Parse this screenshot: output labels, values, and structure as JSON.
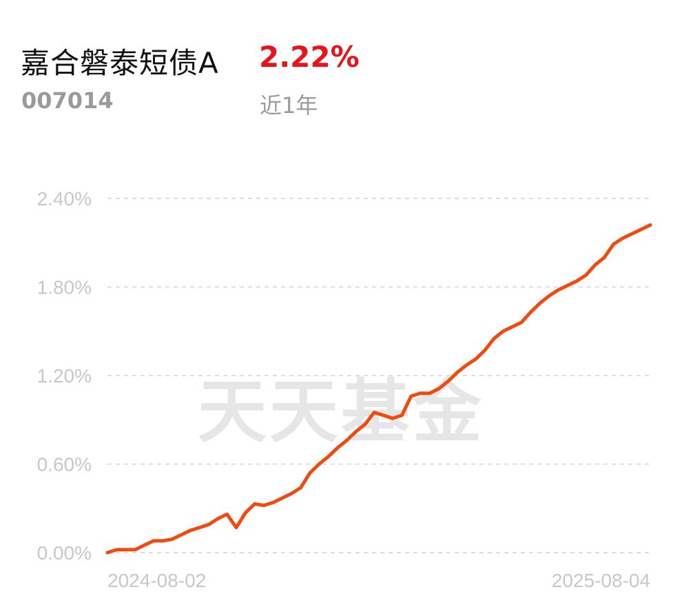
{
  "header": {
    "fund_name": "嘉合磐泰短债A",
    "fund_code": "007014",
    "return_value": "2.22%",
    "period_label": "近1年"
  },
  "colors": {
    "line": "#f04a10",
    "return_value": "#e8141b",
    "grid": "#dddddd",
    "labels": "#c7c7c7",
    "watermark": "#e6e6e6"
  },
  "watermark": "天天基金",
  "chart_data": {
    "type": "line",
    "title": "",
    "xlabel": "",
    "ylabel": "",
    "ylim": [
      0,
      2.4
    ],
    "y_unit": "%",
    "y_ticks": [
      "0.00%",
      "0.60%",
      "1.20%",
      "1.80%",
      "2.40%"
    ],
    "x_tick_labels": [
      "2024-08-02",
      "2025-08-04"
    ],
    "grid": true,
    "series": [
      {
        "color": "#f04a10",
        "x_start": "2024-08-02",
        "x_end": "2025-08-04",
        "values": [
          0.0,
          0.02,
          0.02,
          0.02,
          0.05,
          0.08,
          0.08,
          0.09,
          0.12,
          0.15,
          0.17,
          0.19,
          0.23,
          0.26,
          0.17,
          0.27,
          0.33,
          0.32,
          0.34,
          0.37,
          0.4,
          0.44,
          0.54,
          0.6,
          0.65,
          0.71,
          0.76,
          0.82,
          0.87,
          0.95,
          0.93,
          0.91,
          0.93,
          1.06,
          1.08,
          1.08,
          1.11,
          1.16,
          1.22,
          1.27,
          1.31,
          1.37,
          1.45,
          1.5,
          1.53,
          1.56,
          1.63,
          1.69,
          1.74,
          1.78,
          1.81,
          1.84,
          1.88,
          1.95,
          2.0,
          2.09,
          2.13,
          2.16,
          2.19,
          2.22
        ]
      }
    ]
  }
}
